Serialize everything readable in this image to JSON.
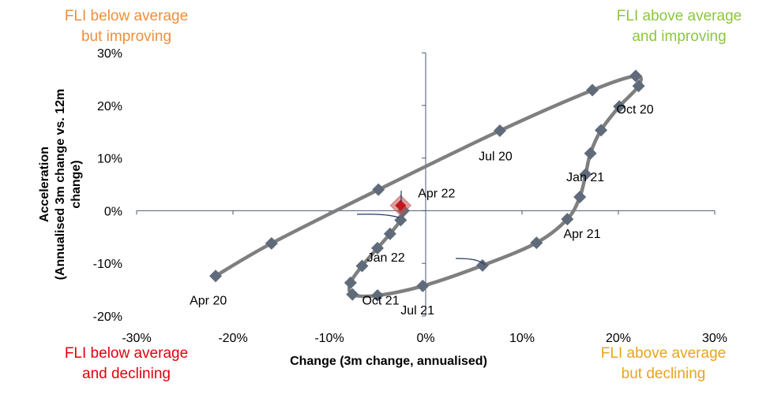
{
  "quadrants": {
    "top_left": [
      "FLI below average",
      "but improving"
    ],
    "top_right": [
      "FLI above average",
      "and improving"
    ],
    "bottom_left": [
      "FLI below average",
      "and declining"
    ],
    "bottom_right": [
      "FLI above average",
      "but declining"
    ]
  },
  "colors": {
    "top_left": "#f28e3a",
    "top_right": "#8cc63e",
    "bottom_left": "#e3000f",
    "bottom_right": "#e8a41c",
    "line": "#7f7f7f",
    "marker": "#5f6b7a",
    "highlight": "#c0504d",
    "axis": "#4a5a73"
  },
  "chart_data": {
    "type": "line",
    "xlabel": "Change (3m change, annualised)",
    "ylabel": [
      "Acceleration",
      "(Annualised 3m change vs. 12m",
      "change)"
    ],
    "xlim": [
      -30,
      30
    ],
    "ylim": [
      -20,
      30
    ],
    "xticks": [
      -30,
      -20,
      -10,
      0,
      10,
      20,
      30
    ],
    "yticks": [
      -20,
      -10,
      0,
      10,
      20,
      30
    ],
    "tick_format": "percent",
    "series": [
      {
        "points": [
          {
            "x": -21.8,
            "y": -12.4
          },
          {
            "x": -16.0,
            "y": -6.2
          },
          {
            "x": -4.9,
            "y": 4.0
          },
          {
            "x": 7.7,
            "y": 15.2
          },
          {
            "x": 17.3,
            "y": 22.9
          },
          {
            "x": 21.8,
            "y": 25.6
          },
          {
            "x": 22.1,
            "y": 23.7
          },
          {
            "x": 20.1,
            "y": 19.8
          },
          {
            "x": 18.2,
            "y": 15.3
          },
          {
            "x": 17.1,
            "y": 10.9
          },
          {
            "x": 16.6,
            "y": 6.9
          },
          {
            "x": 16.0,
            "y": 2.6
          },
          {
            "x": 14.7,
            "y": -1.6
          },
          {
            "x": 11.5,
            "y": -6.1
          },
          {
            "x": 5.9,
            "y": -10.4
          },
          {
            "x": -0.3,
            "y": -14.3
          },
          {
            "x": -5.0,
            "y": -16.1
          },
          {
            "x": -7.6,
            "y": -15.9
          },
          {
            "x": -7.8,
            "y": -13.7
          },
          {
            "x": -6.6,
            "y": -10.5
          },
          {
            "x": -5.0,
            "y": -7.1
          },
          {
            "x": -3.7,
            "y": -4.4
          },
          {
            "x": -2.6,
            "y": -1.8
          },
          {
            "x": -2.3,
            "y": 0.0
          },
          {
            "x": -2.6,
            "y": 1.0
          }
        ]
      }
    ],
    "annotations": [
      {
        "text": "Apr 20",
        "x": -24.5,
        "y": -17.8
      },
      {
        "text": "Jul 20",
        "x": 5.5,
        "y": 9.6
      },
      {
        "text": "Oct 20",
        "x": 19.8,
        "y": 18.5
      },
      {
        "text": "Jan 21",
        "x": 14.6,
        "y": 5.6
      },
      {
        "text": "Apr 21",
        "x": 14.3,
        "y": -5.2
      },
      {
        "text": "Jul 21",
        "x": -2.6,
        "y": -19.7
      },
      {
        "text": "Oct 21",
        "x": -6.6,
        "y": -17.8
      },
      {
        "text": "Jan 22",
        "x": -6.1,
        "y": -9.7
      },
      {
        "text": "Apr 22",
        "x": -0.8,
        "y": 2.5
      }
    ],
    "highlight_index": 24
  }
}
